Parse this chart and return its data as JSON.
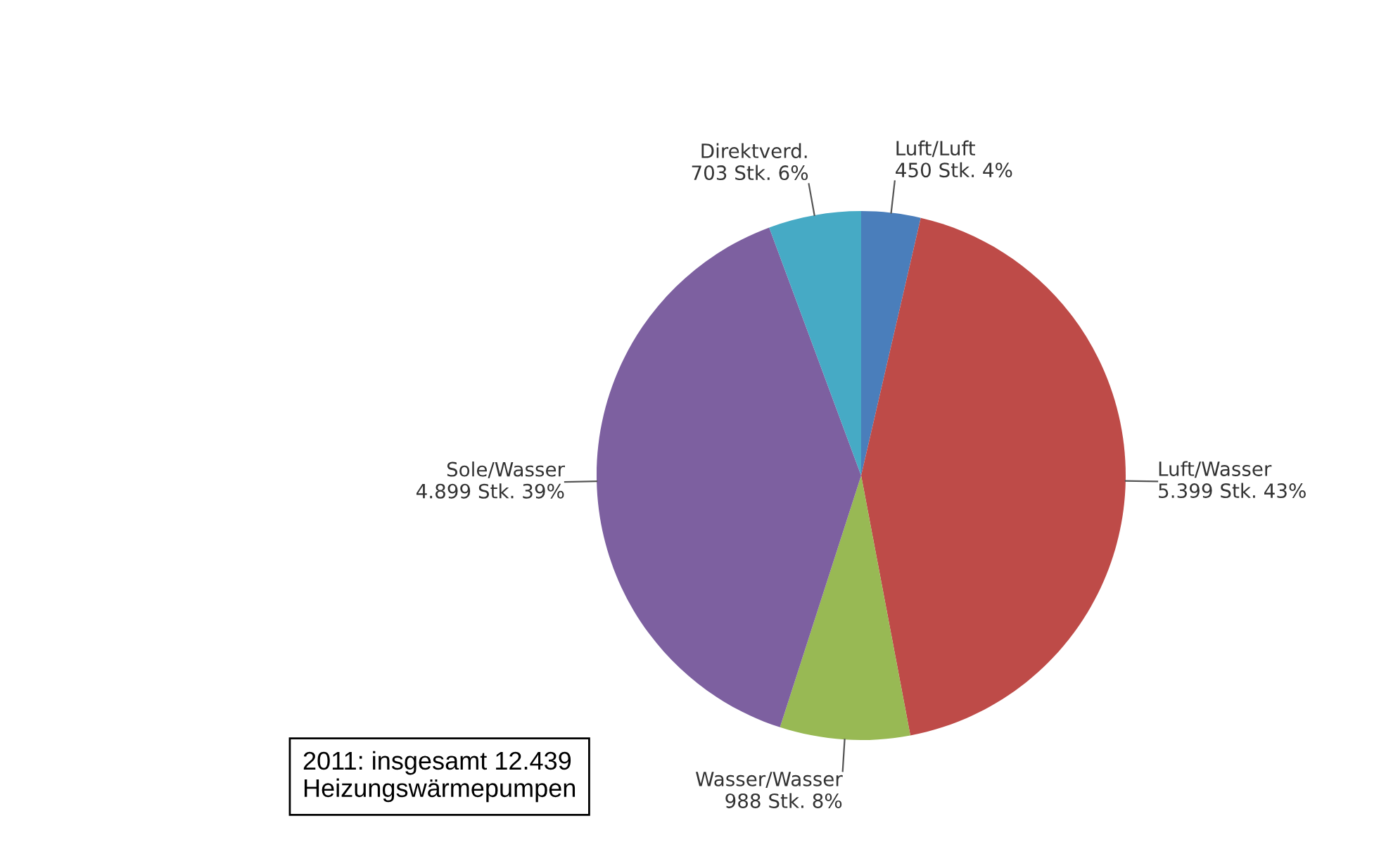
{
  "chart_data": {
    "type": "pie",
    "categories": [
      "Luft/Luft",
      "Luft/Wasser",
      "Wasser/Wasser",
      "Sole/Wasser",
      "Direktverd."
    ],
    "values": [
      450,
      5399,
      988,
      4899,
      703
    ],
    "value_labels": [
      "450 Stk. 4%",
      "5.399 Stk. 43%",
      "988 Stk. 8%",
      "4.899 Stk. 39%",
      "703 Stk. 6%"
    ],
    "colors": [
      "#4a7ebb",
      "#be4b48",
      "#98b954",
      "#7d60a0",
      "#46aac5"
    ],
    "annotations": [
      "2011: insgesamt 12.439\nHeizungswärmepumpen"
    ]
  }
}
